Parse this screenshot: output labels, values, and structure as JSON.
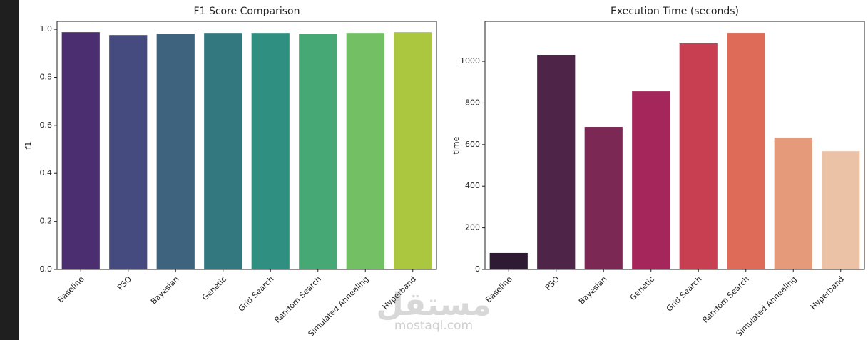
{
  "chart_data": [
    {
      "type": "bar",
      "title": "F1 Score Comparison",
      "y_label": "f1",
      "categories": [
        "Baseline",
        "PSO",
        "Bayesian",
        "Genetic",
        "Grid Search",
        "Random Search",
        "Simulated Annealing",
        "Hyperband"
      ],
      "values": [
        0.988,
        0.976,
        0.982,
        0.985,
        0.985,
        0.982,
        0.985,
        0.988
      ],
      "colors": [
        "#4b2e6f",
        "#454a7f",
        "#3d637f",
        "#33777f",
        "#2f8f80",
        "#46a874",
        "#73bf63",
        "#abc63f"
      ],
      "ylim": [
        0,
        1.033
      ],
      "yticks": [
        {
          "value": 0,
          "label": "0.0"
        },
        0.2,
        0.4,
        0.6,
        0.8,
        {
          "value": 1,
          "label": "1.0"
        }
      ]
    },
    {
      "type": "bar",
      "title": "Execution Time (seconds)",
      "y_label": "time",
      "categories": [
        "Baseline",
        "PSO",
        "Bayesian",
        "Genetic",
        "Grid Search",
        "Random Search",
        "Simulated Annealing",
        "Hyperband"
      ],
      "values": [
        79,
        1031,
        685,
        856,
        1086,
        1137,
        634,
        568
      ],
      "colors": [
        "#2e1a33",
        "#4f2449",
        "#7b2855",
        "#a5265a",
        "#c83f52",
        "#dd6b57",
        "#e59a7a",
        "#ecc2a7"
      ],
      "ylim": [
        0,
        1192
      ],
      "yticks": [
        0,
        200,
        400,
        600,
        800,
        1000
      ]
    }
  ],
  "watermark": {
    "arabic": "مستقل",
    "latin": "mostaql.com"
  }
}
